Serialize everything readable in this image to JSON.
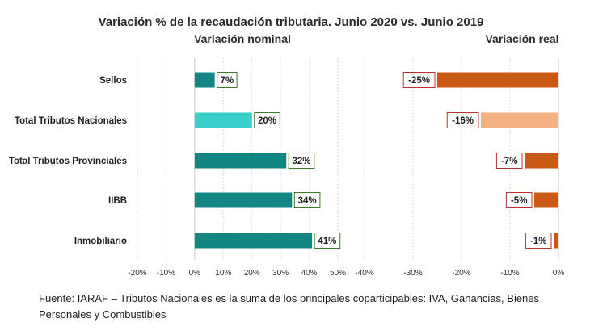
{
  "chart_data": {
    "type": "bar",
    "title": "Variación % de la recaudación tributaria.  Junio 2020 vs. Junio 2019",
    "categories": [
      "Sellos",
      "Total Tributos Nacionales",
      "Total Tributos Provinciales",
      "IIBB",
      "Inmobiliario"
    ],
    "panels": [
      {
        "subtitle": "Variación nominal",
        "values": [
          7,
          20,
          32,
          34,
          41
        ],
        "data_labels": [
          "7%",
          "20%",
          "32%",
          "34%",
          "41%"
        ],
        "xlim": [
          -20,
          50
        ],
        "ticks": [
          -20,
          -10,
          0,
          10,
          20,
          30,
          40,
          50
        ],
        "tick_labels": [
          "-20%",
          "-10%",
          "0%",
          "10%",
          "20%",
          "30%",
          "40%",
          "50%"
        ],
        "bar_colors": [
          "#128683",
          "#38cfcb",
          "#128683",
          "#128683",
          "#128683"
        ],
        "label_color": "#3d7a2a",
        "grid": "vertical dotted"
      },
      {
        "subtitle": "Variación real",
        "values": [
          -25,
          -16,
          -7,
          -5,
          -1
        ],
        "data_labels": [
          "-25%",
          "-16%",
          "-7%",
          "-5%",
          "-1%"
        ],
        "xlim": [
          -40,
          0
        ],
        "ticks": [
          -40,
          -30,
          -20,
          -10,
          0
        ],
        "tick_labels": [
          "-40%",
          "-30%",
          "-20%",
          "-10%",
          "0%"
        ],
        "bar_colors": [
          "#c85a16",
          "#f4b184",
          "#c85a16",
          "#c85a16",
          "#c85a16"
        ],
        "label_color": "#b83232",
        "grid": "vertical dotted"
      }
    ]
  },
  "footer": {
    "text": "Fuente: IARAF – Tributos Nacionales es la suma de los principales coparticipables: IVA, Ganancias, Bienes Personales y Combustibles"
  }
}
